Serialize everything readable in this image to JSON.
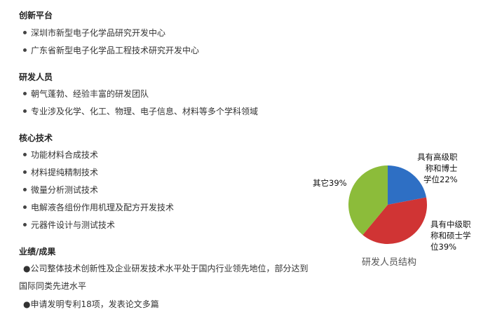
{
  "sections": [
    {
      "title": "创新平台",
      "items": [
        "深圳市新型电子化学品研究开发中心",
        "广东省新型电子化学品工程技术研究开发中心"
      ]
    },
    {
      "title": "研发人员",
      "items": [
        "朝气蓬勃、经验丰富的研发团队",
        "专业涉及化学、化工、物理、电子信息、材料等多个学科领域"
      ]
    },
    {
      "title": "核心技术",
      "items": [
        "功能材料合成技术",
        "材料提纯精制技术",
        "微量分析测试技术",
        "电解液各组份作用机理及配方开发技术",
        "元器件设计与测试技术"
      ]
    },
    {
      "title": "业绩/成果",
      "items": [
        "●公司整体技术创新性及企业研发技术水平处于国内行业领先地位，部分达到",
        "国际同类先进水平",
        "●申请发明专利18项，发表论文多篇"
      ]
    }
  ],
  "chart_data": {
    "type": "pie",
    "title": "研发人员结构",
    "slices": [
      {
        "label": "具有高级职称和博士学位22%",
        "value": 22,
        "color": "#2e6fc4"
      },
      {
        "label": "具有中级职称和硕士学位39%",
        "value": 39,
        "color": "#d03434"
      },
      {
        "label": "其它39%",
        "value": 39,
        "color": "#8cbc3a"
      }
    ],
    "label_lines": [
      [
        "具有高级职",
        "称和博士",
        "学位22%"
      ],
      [
        "具有中级职",
        "称和硕士学",
        "位39%"
      ],
      [
        "其它39%"
      ]
    ]
  }
}
